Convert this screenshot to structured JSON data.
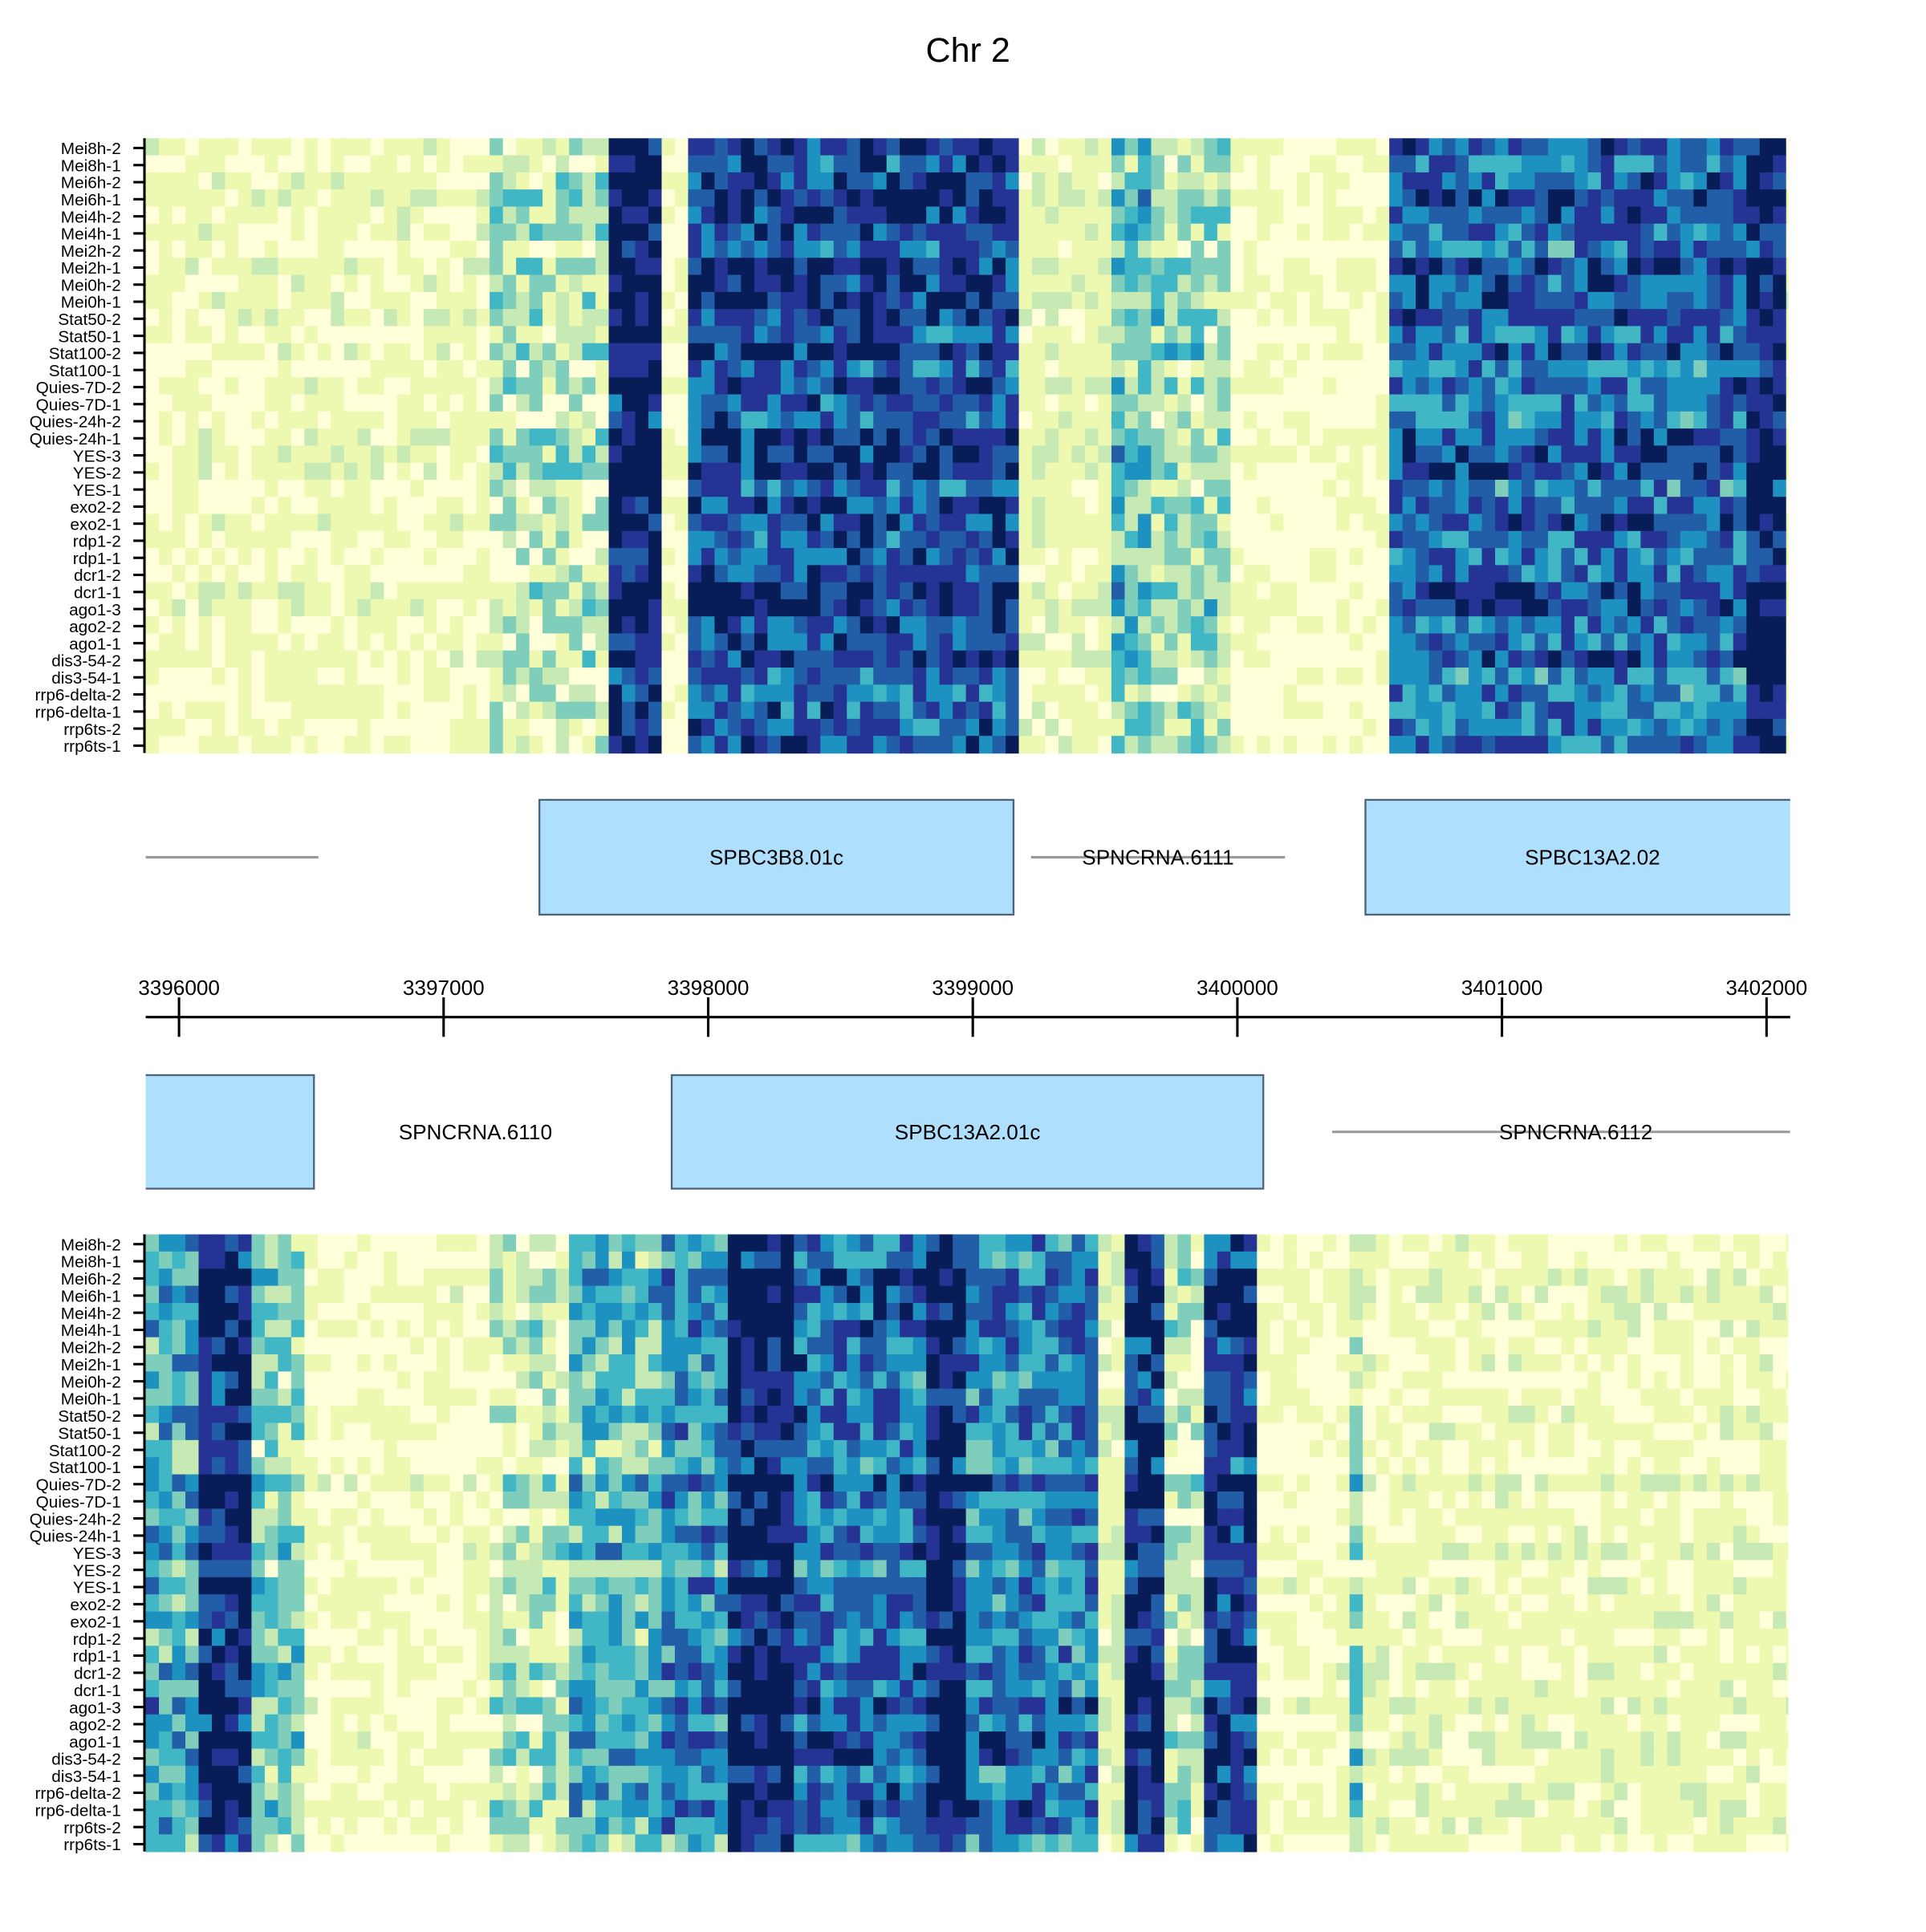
{
  "chart_data": {
    "type": "heatmap",
    "title": "Chr 2",
    "row_labels": [
      "Mei8h-2",
      "Mei8h-1",
      "Mei6h-2",
      "Mei6h-1",
      "Mei4h-2",
      "Mei4h-1",
      "Mei2h-2",
      "Mei2h-1",
      "Mei0h-2",
      "Mei0h-1",
      "Stat50-2",
      "Stat50-1",
      "Stat100-2",
      "Stat100-1",
      "Quies-7D-2",
      "Quies-7D-1",
      "Quies-24h-2",
      "Quies-24h-1",
      "YES-3",
      "YES-2",
      "YES-1",
      "exo2-2",
      "exo2-1",
      "rdp1-2",
      "rdp1-1",
      "dcr1-2",
      "dcr1-1",
      "ago1-3",
      "ago2-2",
      "ago1-1",
      "dis3-54-2",
      "dis3-54-1",
      "rrp6-delta-2",
      "rrp6-delta-1",
      "rrp6ts-2",
      "rrp6ts-1"
    ],
    "xlim": [
      3395874,
      3402080
    ],
    "x_ticks": [
      "3396000",
      "3397000",
      "3398000",
      "3399000",
      "3400000",
      "3401000",
      "3402000"
    ],
    "x_tick_values": [
      3396000,
      3397000,
      3398000,
      3399000,
      3400000,
      3401000,
      3402000
    ],
    "color_scale": [
      "#ffffd9",
      "#edf8b1",
      "#c7e9b4",
      "#7fcdbb",
      "#41b6c4",
      "#1d91c0",
      "#225ea8",
      "#253494",
      "#081d58"
    ],
    "top_panel_profile": [
      [
        3395874,
        3397190,
        0.08
      ],
      [
        3397190,
        3397610,
        0.22
      ],
      [
        3397610,
        3397843,
        0.95
      ],
      [
        3397843,
        3397913,
        0.04
      ],
      [
        3397913,
        3399150,
        0.8
      ],
      [
        3399150,
        3399523,
        0.12
      ],
      [
        3399523,
        3399663,
        0.42
      ],
      [
        3399663,
        3399990,
        0.3
      ],
      [
        3399990,
        3400596,
        0.03
      ],
      [
        3400596,
        3401949,
        0.72
      ],
      [
        3401949,
        3402080,
        0.95
      ]
    ],
    "bottom_panel_profile": [
      [
        3395874,
        3396070,
        0.5
      ],
      [
        3396070,
        3396257,
        0.92
      ],
      [
        3396257,
        3396490,
        0.35
      ],
      [
        3396490,
        3397190,
        0.05
      ],
      [
        3397190,
        3397470,
        0.2
      ],
      [
        3397470,
        3397843,
        0.45
      ],
      [
        3397843,
        3398053,
        0.6
      ],
      [
        3398053,
        3398310,
        0.96
      ],
      [
        3398310,
        3398823,
        0.7
      ],
      [
        3398823,
        3398963,
        0.96
      ],
      [
        3398963,
        3399453,
        0.65
      ],
      [
        3399453,
        3399570,
        0.15
      ],
      [
        3399570,
        3399710,
        0.9
      ],
      [
        3399710,
        3399873,
        0.2
      ],
      [
        3399873,
        3400060,
        0.85
      ],
      [
        3400060,
        3400409,
        0.05
      ],
      [
        3400409,
        3400479,
        0.35
      ],
      [
        3400479,
        3402080,
        0.1
      ]
    ],
    "genes_top": [
      {
        "name": "",
        "type": "ncrna",
        "start": 3395874,
        "end": 3396527
      },
      {
        "name": "SPBC3B8.01c",
        "type": "gene",
        "start": 3397362,
        "end": 3399154
      },
      {
        "name": "SPNCRNA.6111",
        "type": "ncrna",
        "start": 3399220,
        "end": 3400180
      },
      {
        "name": "SPBC13A2.02",
        "type": "gene",
        "start": 3400484,
        "end": 3402200
      }
    ],
    "genes_bottom": [
      {
        "name": "",
        "type": "gene",
        "start": 3395700,
        "end": 3396510
      },
      {
        "name": "SPNCRNA.6110",
        "type": "label",
        "start": 3396700,
        "end": 3397540
      },
      {
        "name": "SPBC13A2.01c",
        "type": "gene",
        "start": 3397862,
        "end": 3400098
      },
      {
        "name": "SPNCRNA.6112",
        "type": "ncrna",
        "start": 3400358,
        "end": 3402200
      }
    ]
  }
}
